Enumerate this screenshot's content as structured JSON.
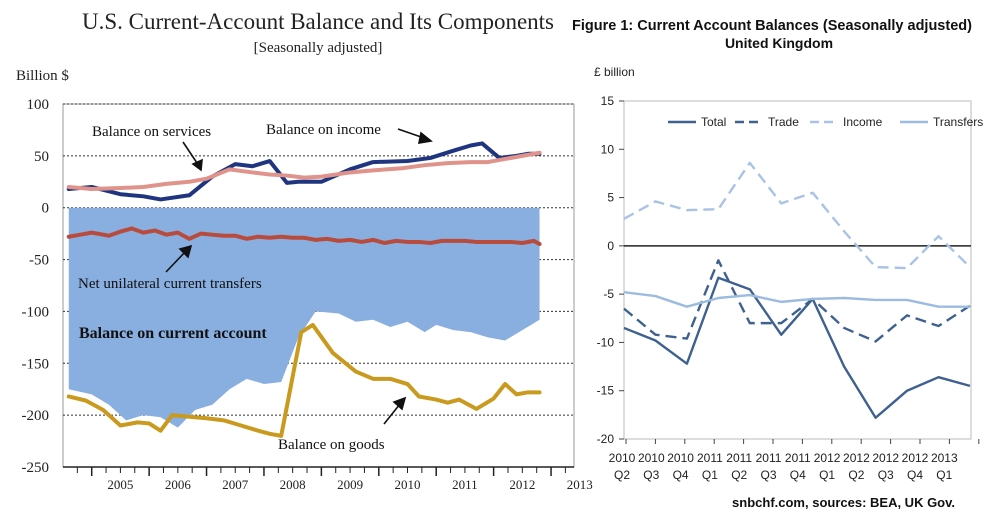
{
  "chart_data": [
    {
      "type": "line",
      "title": "U.S. Current-Account Balance and Its Components",
      "subtitle": "[Seasonally adjusted]",
      "ylabel": "Billion $",
      "ylim": [
        -250,
        100
      ],
      "yticks": [
        "100",
        "50",
        "0",
        "-50",
        "-100",
        "-150",
        "-200",
        "-250"
      ],
      "ytick_values": [
        100,
        50,
        0,
        -50,
        -100,
        -150,
        -200,
        -250
      ],
      "xrange": [
        2004.5,
        2013.4
      ],
      "year_labels": [
        "2005",
        "2006",
        "2007",
        "2008",
        "2009",
        "2010",
        "2011",
        "2012",
        "2013"
      ],
      "year_positions": [
        2005,
        2006,
        2007,
        2008,
        2009,
        2010,
        2011,
        2012,
        2013
      ],
      "stray_mark": "'",
      "annotations": {
        "services": "Balance on services",
        "income": "Balance on income",
        "transfers": "Net unilateral current transfers",
        "current": "Balance on current account",
        "goods": "Balance on goods"
      },
      "series": [
        {
          "name": "Balance on income",
          "color": "#1f3580",
          "x": [
            2004.6,
            2005.0,
            2005.5,
            2005.9,
            2006.2,
            2006.7,
            2007.1,
            2007.5,
            2007.8,
            2008.1,
            2008.4,
            2008.6,
            2009.0,
            2009.5,
            2009.9,
            2010.5,
            2010.9,
            2011.3,
            2011.6,
            2011.8,
            2012.1,
            2012.4,
            2012.6,
            2012.8
          ],
          "y": [
            18,
            20,
            13,
            11,
            8,
            12,
            30,
            42,
            40,
            45,
            24,
            25,
            25,
            37,
            44,
            45,
            48,
            55,
            60,
            62,
            48,
            50,
            52,
            52
          ]
        },
        {
          "name": "Balance on services",
          "color": "#e0938a",
          "x": [
            2004.6,
            2005.0,
            2005.5,
            2005.9,
            2006.3,
            2006.7,
            2007.0,
            2007.4,
            2007.8,
            2008.1,
            2008.4,
            2008.7,
            2009.0,
            2009.5,
            2009.9,
            2010.4,
            2010.8,
            2011.2,
            2011.6,
            2011.9,
            2012.2,
            2012.5,
            2012.8
          ],
          "y": [
            20,
            18,
            19,
            20,
            23,
            25,
            28,
            37,
            34,
            32,
            31,
            29,
            30,
            34,
            36,
            38,
            41,
            43,
            44,
            44,
            47,
            50,
            53
          ]
        },
        {
          "name": "Net unilateral current transfers",
          "color": "#b84b3c",
          "x": [
            2004.6,
            2004.8,
            2005.0,
            2005.3,
            2005.5,
            2005.7,
            2005.9,
            2006.1,
            2006.3,
            2006.5,
            2006.7,
            2006.9,
            2007.1,
            2007.3,
            2007.5,
            2007.7,
            2007.9,
            2008.1,
            2008.3,
            2008.5,
            2008.7,
            2008.9,
            2009.1,
            2009.3,
            2009.5,
            2009.7,
            2009.9,
            2010.1,
            2010.3,
            2010.5,
            2010.7,
            2010.9,
            2011.1,
            2011.3,
            2011.5,
            2011.7,
            2011.9,
            2012.1,
            2012.3,
            2012.5,
            2012.7,
            2012.8
          ],
          "y": [
            -28,
            -26,
            -24,
            -27,
            -23,
            -20,
            -24,
            -22,
            -26,
            -24,
            -30,
            -25,
            -26,
            -27,
            -27,
            -30,
            -28,
            -29,
            -28,
            -29,
            -29,
            -31,
            -30,
            -32,
            -31,
            -33,
            -31,
            -34,
            -32,
            -33,
            -33,
            -34,
            -32,
            -32,
            -32,
            -33,
            -33,
            -33,
            -33,
            -34,
            -32,
            -35
          ]
        },
        {
          "name": "Balance on goods",
          "color": "#c99a1e",
          "x": [
            2004.6,
            2004.9,
            2005.2,
            2005.5,
            2005.8,
            2006.0,
            2006.2,
            2006.4,
            2006.8,
            2007.0,
            2007.3,
            2007.6,
            2007.9,
            2008.1,
            2008.3,
            2008.65,
            2008.85,
            2009.2,
            2009.6,
            2009.9,
            2010.2,
            2010.5,
            2010.7,
            2011.0,
            2011.2,
            2011.4,
            2011.7,
            2012.0,
            2012.2,
            2012.4,
            2012.6,
            2012.8
          ],
          "y": [
            -182,
            -186,
            -195,
            -210,
            -207,
            -208,
            -215,
            -200,
            -202,
            -203,
            -205,
            -210,
            -215,
            -218,
            -220,
            -120,
            -113,
            -140,
            -158,
            -165,
            -165,
            -170,
            -182,
            -185,
            -188,
            -185,
            -194,
            -184,
            -170,
            -180,
            -178,
            -178
          ]
        },
        {
          "name": "Balance on current account",
          "color": "#89aee0",
          "x": [
            2004.6,
            2005.0,
            2005.3,
            2005.6,
            2005.9,
            2006.2,
            2006.5,
            2006.8,
            2007.1,
            2007.4,
            2007.7,
            2008.0,
            2008.3,
            2008.6,
            2008.9,
            2009.3,
            2009.6,
            2009.9,
            2010.2,
            2010.5,
            2010.8,
            2011.0,
            2011.3,
            2011.6,
            2011.9,
            2012.2,
            2012.5,
            2012.8
          ],
          "y": [
            -175,
            -180,
            -190,
            -205,
            -200,
            -202,
            -212,
            -195,
            -190,
            -175,
            -165,
            -170,
            -168,
            -125,
            -100,
            -102,
            -110,
            -108,
            -115,
            -110,
            -120,
            -113,
            -118,
            -120,
            -125,
            -128,
            -118,
            -108
          ]
        }
      ]
    },
    {
      "type": "line",
      "title": "Figure 1: Current Account Balances (Seasonally adjusted)",
      "subtitle": "United Kingdom",
      "ylabel": "£ billion",
      "ylim": [
        -20,
        15
      ],
      "yticks": [
        "15",
        "10",
        "5",
        "0",
        "-5",
        "-10",
        "-15",
        "-20"
      ],
      "ytick_values": [
        15,
        10,
        5,
        0,
        -5,
        -10,
        -15,
        -20
      ],
      "categories": [
        "2010 Q2",
        "2010 Q3",
        "2010 Q4",
        "2011 Q1",
        "2011 Q2",
        "2011 Q3",
        "2011 Q4",
        "2012 Q1",
        "2012 Q2",
        "2012 Q3",
        "2012 Q4",
        "2013 Q1"
      ],
      "cat_years": [
        "2010",
        "2010",
        "2010",
        "2011",
        "2011",
        "2011",
        "2011",
        "2012",
        "2012",
        "2012",
        "2012",
        "2013"
      ],
      "cat_quarters": [
        "Q2",
        "Q3",
        "Q4",
        "Q1",
        "Q2",
        "Q3",
        "Q4",
        "Q1",
        "Q2",
        "Q3",
        "Q4",
        "Q1"
      ],
      "series": [
        {
          "name": "Total",
          "color": "#3e6190",
          "dash": "none",
          "values": [
            -8.5,
            -9.8,
            -12.2,
            -3.3,
            -4.5,
            -9.2,
            -5.5,
            -12.5,
            -17.8,
            -15.0,
            -13.6,
            -14.5
          ]
        },
        {
          "name": "Trade",
          "color": "#3e6190",
          "dash": "11,6",
          "values": [
            -6.5,
            -9.2,
            -9.6,
            -1.5,
            -8.0,
            -8.0,
            -5.5,
            -8.5,
            -9.9,
            -7.2,
            -8.3,
            -6.2
          ]
        },
        {
          "name": "Income",
          "color": "#a9c3e6",
          "dash": "11,6",
          "values": [
            2.8,
            4.6,
            3.7,
            3.8,
            8.6,
            4.4,
            5.5,
            1.5,
            -2.2,
            -2.3,
            1.0,
            -2.2
          ]
        },
        {
          "name": "Transfers",
          "color": "#9cbbe0",
          "dash": "none",
          "values": [
            -4.8,
            -5.2,
            -6.3,
            -5.4,
            -5.1,
            -5.8,
            -5.5,
            -5.4,
            -5.6,
            -5.6,
            -6.3,
            -6.3
          ]
        }
      ]
    }
  ],
  "source_note": "snbchf.com, sources: BEA, UK Gov."
}
